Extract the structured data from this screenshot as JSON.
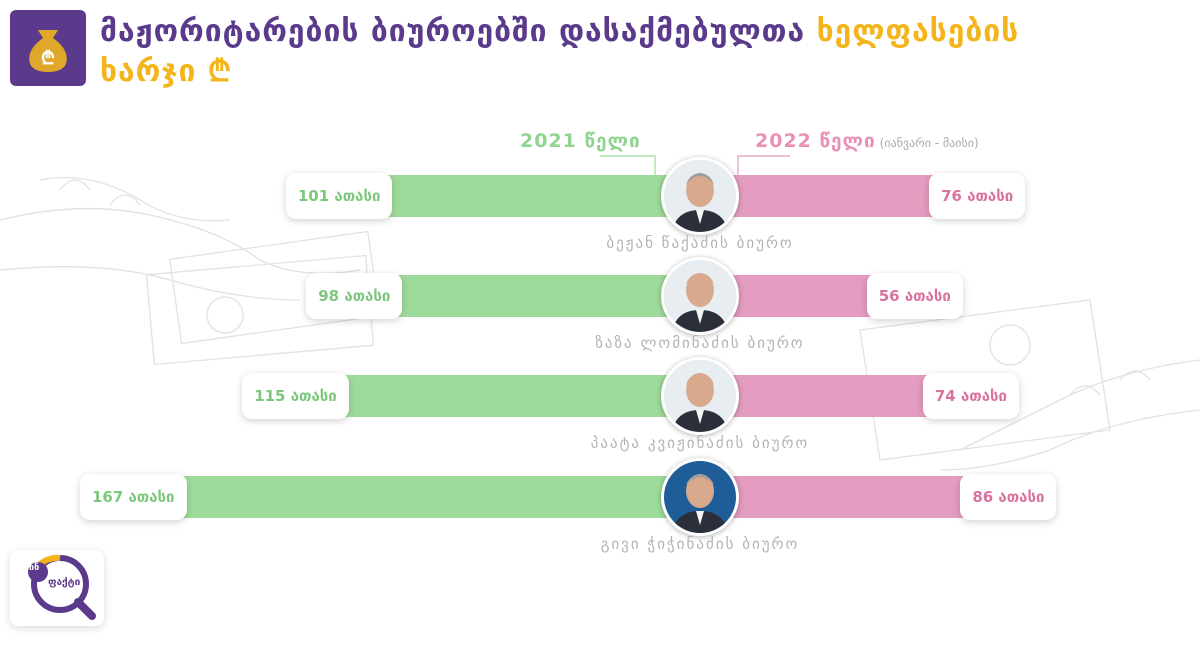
{
  "header": {
    "title_main": "მაჟორიტარების ბიუროებში დასაქმებულთა",
    "title_highlight": "ხელფასების",
    "title_line2": "ხარჯი ₾"
  },
  "legend": {
    "label_2021": "2021 წელი",
    "label_2022": "2022  წელი",
    "label_2022_note": "(იანვარი - მაისი)"
  },
  "colors": {
    "brand_purple": "#5b3a8c",
    "accent_yellow": "#f2b51c",
    "bar_2021": "#9edb9a",
    "bar_2022": "#e49cc0"
  },
  "chart_data": {
    "type": "bar",
    "orientation": "horizontal-diverging",
    "categories": [
      "ბეჟან წაქაძის ბიურო",
      "ზაზა ლომინაძის ბიურო",
      "პაატა კვიჟინაძის ბიურო",
      "გივი ჭიჭინაძის ბიურო"
    ],
    "series": [
      {
        "name": "2021 წელი",
        "values": [
          101,
          98,
          115,
          167
        ],
        "labels": [
          "101 ათასი",
          "98 ათასი",
          "115 ათასი",
          "167 ათასი"
        ]
      },
      {
        "name": "2022  წელი",
        "values": [
          76,
          56,
          74,
          86
        ],
        "labels": [
          "76 ათასი",
          "56 ათასი",
          "74 ათასი",
          "86 ათასი"
        ]
      }
    ],
    "unit": "ათასი ₾"
  },
  "brand": {
    "badge_text": "ფაქტი",
    "badge_number": "ინ"
  }
}
